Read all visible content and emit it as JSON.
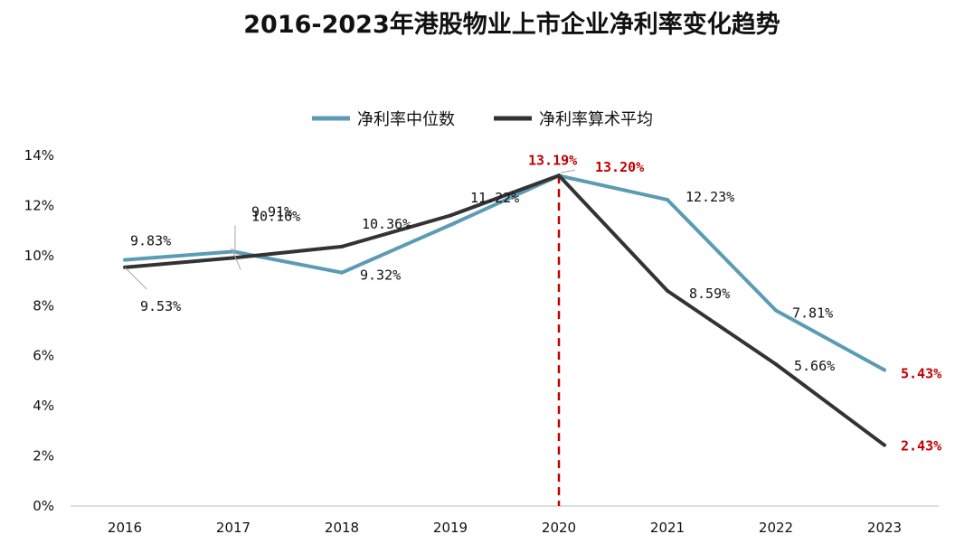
{
  "chart_data": {
    "type": "line",
    "title": "2016-2023年港股物业上市企业净利率变化趋势",
    "categories": [
      "2016",
      "2017",
      "2018",
      "2019",
      "2020",
      "2021",
      "2022",
      "2023"
    ],
    "series": [
      {
        "name": "净利率中位数",
        "color": "#5b9bb4",
        "values": [
          9.83,
          10.16,
          9.32,
          11.22,
          13.19,
          12.23,
          7.81,
          5.43
        ],
        "labels": [
          "9.83%",
          "10.16%",
          "9.32%",
          "11.22%",
          "13.19%",
          "12.23%",
          "7.81%",
          "5.43%"
        ]
      },
      {
        "name": "净利率算术平均",
        "color": "#333333",
        "values": [
          9.53,
          9.91,
          10.36,
          11.6,
          13.2,
          8.59,
          5.66,
          2.43
        ],
        "labels": [
          "9.53%",
          "9.91%",
          "10.36%",
          null,
          "13.20%",
          "8.59%",
          "5.66%",
          "2.43%"
        ]
      }
    ],
    "y_ticks": [
      "0%",
      "2%",
      "4%",
      "6%",
      "8%",
      "10%",
      "12%",
      "14%"
    ],
    "ylim": [
      0,
      14
    ],
    "ystep": 2,
    "xlabel": "",
    "ylabel": "",
    "legend": "top-center",
    "grid": false,
    "highlight_color": "#c00000",
    "marker_category": "2020",
    "highlight_labels": [
      "13.19%",
      "13.20%",
      "5.43%",
      "2.43%"
    ]
  }
}
